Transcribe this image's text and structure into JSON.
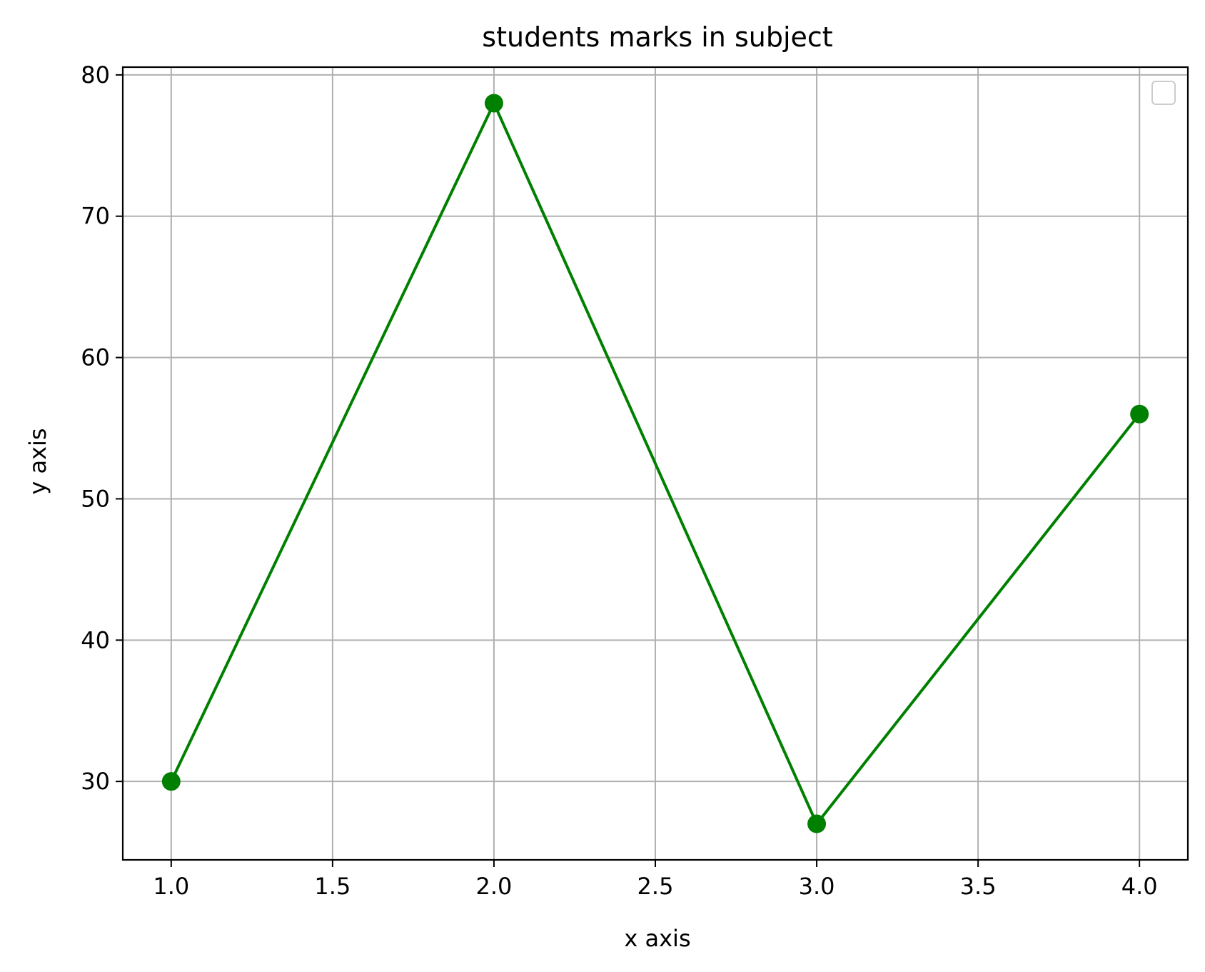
{
  "chart_data": {
    "type": "line",
    "title": "students marks in subject",
    "xlabel": "x axis",
    "ylabel": "y axis",
    "x": [
      1,
      2,
      3,
      4
    ],
    "series": [
      {
        "values": [
          30,
          78,
          27,
          56
        ],
        "color": "#008000",
        "marker": "circle"
      }
    ],
    "xlim": [
      0.85,
      4.15
    ],
    "ylim": [
      24.45,
      80.55
    ],
    "xticks": [
      "1.0",
      "1.5",
      "2.0",
      "2.5",
      "3.0",
      "3.5",
      "4.0"
    ],
    "yticks": [
      "30",
      "40",
      "50",
      "60",
      "70",
      "80"
    ],
    "grid": true,
    "legend": {
      "placement": "top-right",
      "entries": []
    }
  }
}
